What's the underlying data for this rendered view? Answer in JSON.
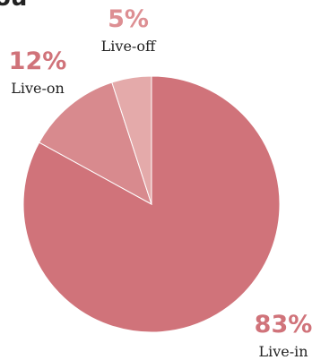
{
  "chart_data": {
    "type": "pie",
    "title": "",
    "partial_top_text": "ou",
    "slices": [
      {
        "label": "Live-in",
        "value": 83,
        "display": "83%",
        "color": "#d0737a",
        "label_color": "#d0737a"
      },
      {
        "label": "Live-on",
        "value": 12,
        "display": "12%",
        "color": "#d88a8e",
        "label_color": "#d0737a"
      },
      {
        "label": "Live-off",
        "value": 5,
        "display": "5%",
        "color": "#e4aaaa",
        "label_color": "#dd8f93"
      }
    ]
  }
}
